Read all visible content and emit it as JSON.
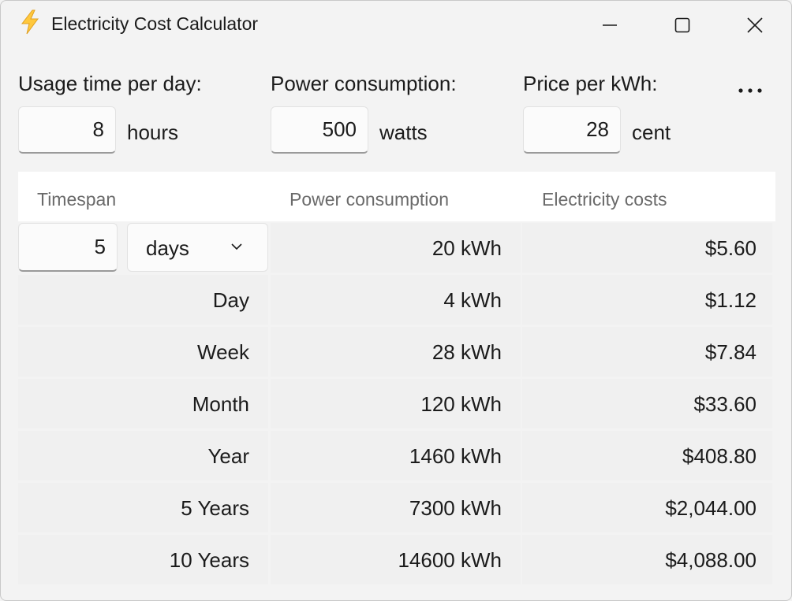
{
  "window": {
    "title": "Electricity Cost Calculator",
    "icon": "lightning-icon",
    "accent": "#ffc83d"
  },
  "settings": {
    "usage": {
      "label": "Usage time per day:",
      "value": "8",
      "unit": "hours"
    },
    "power": {
      "label": "Power consumption:",
      "value": "500",
      "unit": "watts"
    },
    "price": {
      "label": "Price per kWh:",
      "value": "28",
      "unit": "cent"
    },
    "more_icon": "more-icon"
  },
  "table": {
    "headers": [
      "Timespan",
      "Power consumption",
      "Electricity costs"
    ],
    "custom": {
      "value": "5",
      "unit": "days",
      "consumption": "20 kWh",
      "cost": "$5.60"
    },
    "rows": [
      {
        "timespan": "Day",
        "consumption": "4 kWh",
        "cost": "$1.12"
      },
      {
        "timespan": "Week",
        "consumption": "28 kWh",
        "cost": "$7.84"
      },
      {
        "timespan": "Month",
        "consumption": "120 kWh",
        "cost": "$33.60"
      },
      {
        "timespan": "Year",
        "consumption": "1460 kWh",
        "cost": "$408.80"
      },
      {
        "timespan": "5 Years",
        "consumption": "7300 kWh",
        "cost": "$2,044.00"
      },
      {
        "timespan": "10 Years",
        "consumption": "14600 kWh",
        "cost": "$4,088.00"
      }
    ]
  }
}
